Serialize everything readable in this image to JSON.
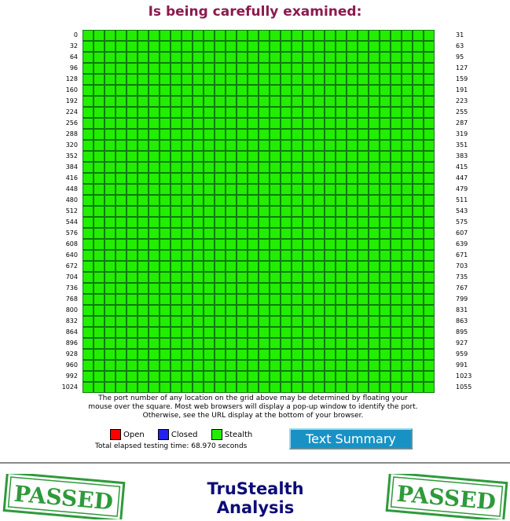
{
  "heading": "Is being carefully examined:",
  "grid": {
    "rows": 33,
    "cols": 32,
    "cell_status": "stealth",
    "left_labels": [
      "0",
      "32",
      "64",
      "96",
      "128",
      "160",
      "192",
      "224",
      "256",
      "288",
      "320",
      "352",
      "384",
      "416",
      "448",
      "480",
      "512",
      "544",
      "576",
      "608",
      "640",
      "672",
      "704",
      "736",
      "768",
      "800",
      "832",
      "864",
      "896",
      "928",
      "960",
      "992",
      "1024"
    ],
    "right_labels": [
      "31",
      "63",
      "95",
      "127",
      "159",
      "191",
      "223",
      "255",
      "287",
      "319",
      "351",
      "383",
      "415",
      "447",
      "479",
      "511",
      "543",
      "575",
      "607",
      "639",
      "671",
      "703",
      "735",
      "767",
      "799",
      "831",
      "863",
      "895",
      "927",
      "959",
      "991",
      "1023",
      "1055"
    ]
  },
  "explanation": "The port number of any location on the grid above may be determined by floating your mouse over the square. Most web browsers will display a pop-up window to identify the port. Otherwise, see the URL display at the bottom of your browser.",
  "legend": [
    {
      "label": "Open",
      "color": "#ff0000"
    },
    {
      "label": "Closed",
      "color": "#2222ee"
    },
    {
      "label": "Stealth",
      "color": "#22ee00"
    }
  ],
  "elapsed": "Total elapsed testing time: 68.970 seconds",
  "text_summary_button": "Text Summary",
  "stamp_text": "PASSED",
  "analysis_title": {
    "line1": "TruStealth",
    "line2": "Analysis"
  },
  "colors": {
    "stealth": "#22ee00",
    "heading": "#8b1a4f",
    "button": "#1892c4",
    "stamp": "#2e9a3a",
    "title": "#0c0c78"
  }
}
